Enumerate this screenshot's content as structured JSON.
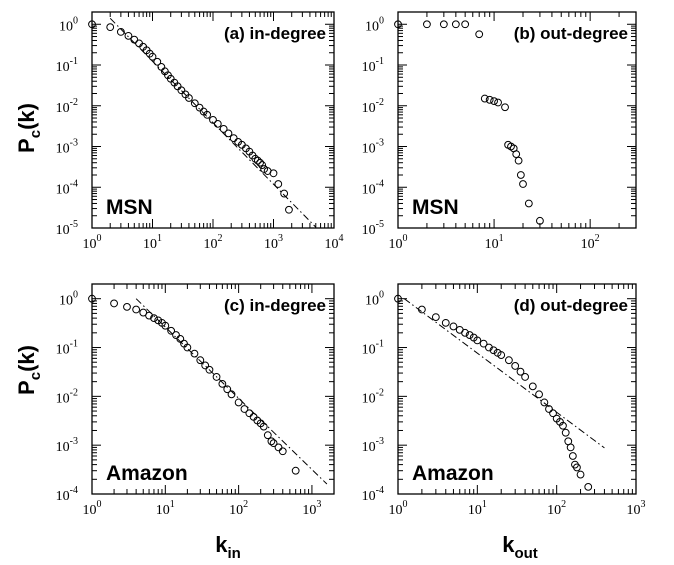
{
  "figure": {
    "ylabel_main": "P",
    "ylabel_sub": "c",
    "ylabel_tail": "(k)",
    "xlabel_left_main": "k",
    "xlabel_left_sub": "in",
    "xlabel_right_main": "k",
    "xlabel_right_sub": "out"
  },
  "chart_data": [
    {
      "type": "scatter",
      "panel": "a",
      "title": "(a) in-degree",
      "dataset_label": "MSN",
      "xscale": "log",
      "yscale": "log",
      "xlim": [
        1,
        10000
      ],
      "ylim": [
        1e-05,
        2
      ],
      "xticks": [
        {
          "m": "10",
          "e": "0",
          "v": 1
        },
        {
          "m": "10",
          "e": "1",
          "v": 10
        },
        {
          "m": "10",
          "e": "2",
          "v": 100
        },
        {
          "m": "10",
          "e": "3",
          "v": 1000
        },
        {
          "m": "10",
          "e": "4",
          "v": 10000
        }
      ],
      "yticks": [
        {
          "m": "10",
          "e": "-5",
          "v": 1e-05
        },
        {
          "m": "10",
          "e": "-4",
          "v": 0.0001
        },
        {
          "m": "10",
          "e": "-3",
          "v": 0.001
        },
        {
          "m": "10",
          "e": "-2",
          "v": 0.01
        },
        {
          "m": "10",
          "e": "-1",
          "v": 0.1
        },
        {
          "m": "10",
          "e": "0",
          "v": 1
        }
      ],
      "x": [
        1,
        2,
        3,
        4,
        5,
        6,
        7,
        8,
        9,
        10,
        12,
        14,
        16,
        18,
        20,
        23,
        26,
        30,
        35,
        40,
        50,
        60,
        70,
        80,
        100,
        120,
        150,
        180,
        220,
        260,
        300,
        350,
        400,
        450,
        500,
        550,
        600,
        650,
        700,
        800,
        1000,
        1200,
        1500,
        1800
      ],
      "y": [
        1,
        0.85,
        0.65,
        0.52,
        0.42,
        0.34,
        0.28,
        0.23,
        0.19,
        0.16,
        0.12,
        0.09,
        0.07,
        0.056,
        0.046,
        0.037,
        0.03,
        0.024,
        0.019,
        0.0155,
        0.0115,
        0.009,
        0.0072,
        0.006,
        0.0045,
        0.0036,
        0.0027,
        0.0021,
        0.0016,
        0.0013,
        0.0011,
        0.0009,
        0.00075,
        0.0006,
        0.0005,
        0.00045,
        0.0004,
        0.00035,
        0.00028,
        0.00025,
        0.00022,
        0.00012,
        7e-05,
        2.8e-05
      ],
      "fit_line": {
        "x": [
          2,
          5000
        ],
        "y": [
          1.4,
          1.05e-05
        ]
      }
    },
    {
      "type": "scatter",
      "panel": "b",
      "title": "(b) out-degree",
      "dataset_label": "MSN",
      "xscale": "log",
      "yscale": "log",
      "xlim": [
        1,
        300
      ],
      "ylim": [
        1e-05,
        2
      ],
      "xticks": [
        {
          "m": "10",
          "e": "0",
          "v": 1
        },
        {
          "m": "10",
          "e": "1",
          "v": 10
        },
        {
          "m": "10",
          "e": "2",
          "v": 100
        }
      ],
      "yticks": [
        {
          "m": "10",
          "e": "-5",
          "v": 1e-05
        },
        {
          "m": "10",
          "e": "-4",
          "v": 0.0001
        },
        {
          "m": "10",
          "e": "-3",
          "v": 0.001
        },
        {
          "m": "10",
          "e": "-2",
          "v": 0.01
        },
        {
          "m": "10",
          "e": "-1",
          "v": 0.1
        },
        {
          "m": "10",
          "e": "0",
          "v": 1
        }
      ],
      "x": [
        1,
        2,
        3,
        4,
        5,
        7,
        8,
        9,
        10,
        11,
        13,
        14,
        15,
        16,
        17,
        18,
        19,
        20,
        23,
        30
      ],
      "y": [
        1,
        1,
        1,
        1,
        1,
        0.57,
        0.015,
        0.014,
        0.013,
        0.012,
        0.0092,
        0.0011,
        0.001,
        0.0009,
        0.00065,
        0.00045,
        0.0002,
        0.00012,
        4e-05,
        1.5e-05
      ]
    },
    {
      "type": "scatter",
      "panel": "c",
      "title": "(c) in-degree",
      "dataset_label": "Amazon",
      "xscale": "log",
      "yscale": "log",
      "xlim": [
        1,
        2000
      ],
      "ylim": [
        0.0001,
        2
      ],
      "xticks": [
        {
          "m": "10",
          "e": "0",
          "v": 1
        },
        {
          "m": "10",
          "e": "1",
          "v": 10
        },
        {
          "m": "10",
          "e": "2",
          "v": 100
        },
        {
          "m": "10",
          "e": "3",
          "v": 1000
        }
      ],
      "yticks": [
        {
          "m": "10",
          "e": "-4",
          "v": 0.0001
        },
        {
          "m": "10",
          "e": "-3",
          "v": 0.001
        },
        {
          "m": "10",
          "e": "-2",
          "v": 0.01
        },
        {
          "m": "10",
          "e": "-1",
          "v": 0.1
        },
        {
          "m": "10",
          "e": "0",
          "v": 1
        }
      ],
      "x": [
        1,
        2,
        3,
        4,
        5,
        6,
        7,
        8,
        9,
        10,
        12,
        14,
        16,
        18,
        20,
        25,
        30,
        35,
        40,
        50,
        60,
        70,
        80,
        100,
        120,
        140,
        160,
        180,
        200,
        220,
        250,
        280,
        300,
        350,
        400,
        600
      ],
      "y": [
        1,
        0.8,
        0.68,
        0.6,
        0.52,
        0.45,
        0.4,
        0.36,
        0.32,
        0.28,
        0.22,
        0.18,
        0.15,
        0.12,
        0.1,
        0.075,
        0.055,
        0.043,
        0.035,
        0.025,
        0.018,
        0.014,
        0.011,
        0.0075,
        0.0055,
        0.0045,
        0.0038,
        0.0032,
        0.0028,
        0.0024,
        0.0016,
        0.0012,
        0.0011,
        0.0009,
        0.00075,
        0.0003
      ],
      "fit_line": {
        "x": [
          4,
          1600
        ],
        "y": [
          1,
          0.00016
        ]
      }
    },
    {
      "type": "scatter",
      "panel": "d",
      "title": "(d) out-degree",
      "dataset_label": "Amazon",
      "xscale": "log",
      "yscale": "log",
      "xlim": [
        1,
        1000
      ],
      "ylim": [
        0.0001,
        2
      ],
      "xticks": [
        {
          "m": "10",
          "e": "0",
          "v": 1
        },
        {
          "m": "10",
          "e": "1",
          "v": 10
        },
        {
          "m": "10",
          "e": "2",
          "v": 100
        },
        {
          "m": "10",
          "e": "3",
          "v": 1000
        }
      ],
      "yticks": [
        {
          "m": "10",
          "e": "-4",
          "v": 0.0001
        },
        {
          "m": "10",
          "e": "-3",
          "v": 0.001
        },
        {
          "m": "10",
          "e": "-2",
          "v": 0.01
        },
        {
          "m": "10",
          "e": "-1",
          "v": 0.1
        },
        {
          "m": "10",
          "e": "0",
          "v": 1
        }
      ],
      "x": [
        1,
        2,
        3,
        4,
        5,
        6,
        7,
        8,
        9,
        10,
        12,
        14,
        16,
        18,
        20,
        25,
        30,
        35,
        40,
        50,
        60,
        70,
        80,
        90,
        100,
        110,
        120,
        130,
        140,
        150,
        160,
        170,
        180,
        200,
        250
      ],
      "y": [
        1,
        0.6,
        0.42,
        0.32,
        0.27,
        0.23,
        0.2,
        0.18,
        0.16,
        0.14,
        0.12,
        0.1,
        0.088,
        0.078,
        0.07,
        0.055,
        0.042,
        0.032,
        0.025,
        0.016,
        0.011,
        0.0075,
        0.0055,
        0.0045,
        0.0035,
        0.003,
        0.0025,
        0.0018,
        0.0012,
        0.0009,
        0.0006,
        0.0004,
        0.00035,
        0.00025,
        0.00014
      ],
      "fit_line": {
        "x": [
          1.2,
          400
        ],
        "y": [
          1,
          0.00088
        ]
      }
    }
  ]
}
